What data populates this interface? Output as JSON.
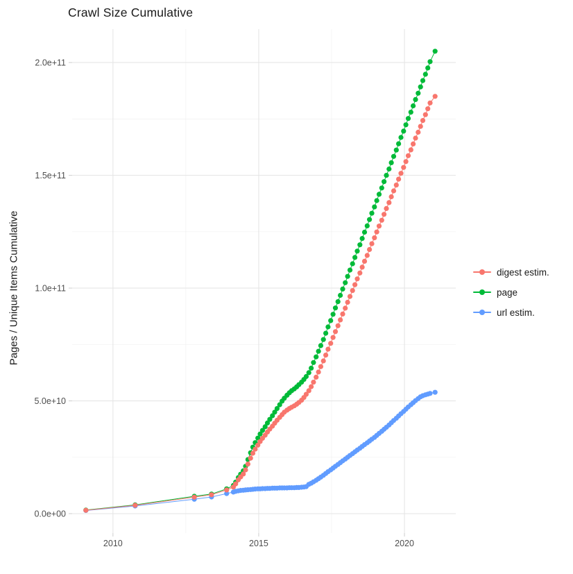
{
  "colors": {
    "background": "#FFFFFF",
    "grid_major": "#E6E6E6",
    "grid_minor": "#F0F0F0",
    "tick_mark": "#D2D2D2",
    "tick_label": "#4D4D4D",
    "text": "#1A1A1A",
    "series_red": "#F8766D",
    "series_green": "#00BA38",
    "series_blue": "#619CFF"
  },
  "chart_data": {
    "type": "line",
    "points_shown": true,
    "title": "Crawl Size Cumulative",
    "xlabel": "",
    "ylabel": "Pages / Unique Items Cumulative",
    "legend_position": "right",
    "grid": true,
    "xlim": [
      2008.6,
      2021.76
    ],
    "ylim_e9": [
      -8.6,
      214.8
    ],
    "y_unit": "pages (1 = 1e9)",
    "x_ticks": {
      "values": [
        2010,
        2015,
        2020
      ],
      "labels": [
        "2010",
        "2015",
        "2020"
      ],
      "minor": [
        2012.5,
        2017.5
      ]
    },
    "y_ticks": {
      "values_e9": [
        0,
        50,
        100,
        150,
        200
      ],
      "labels": [
        "0.0e+00",
        "5.0e+10",
        "1.0e+11",
        "1.5e+11",
        "2.0e+11"
      ],
      "minor_e9": [
        25,
        75,
        125,
        175
      ]
    },
    "series": [
      {
        "name": "digest estim.",
        "color": "#F8766D",
        "x": [
          2009.07,
          2010.76,
          2012.79,
          2013.38,
          2013.9,
          2014.13,
          2014.21,
          2014.3,
          2014.38,
          2014.47,
          2014.55,
          2014.63,
          2014.72,
          2014.8,
          2014.88,
          2014.97,
          2015.05,
          2015.13,
          2015.22,
          2015.3,
          2015.38,
          2015.47,
          2015.55,
          2015.63,
          2015.72,
          2015.8,
          2015.88,
          2015.97,
          2016.05,
          2016.13,
          2016.22,
          2016.3,
          2016.38,
          2016.47,
          2016.55,
          2016.63,
          2016.72,
          2016.8,
          2016.88,
          2016.97,
          2017.05,
          2017.13,
          2017.22,
          2017.3,
          2017.38,
          2017.47,
          2017.55,
          2017.63,
          2017.72,
          2017.8,
          2017.88,
          2017.97,
          2018.05,
          2018.13,
          2018.22,
          2018.3,
          2018.38,
          2018.47,
          2018.55,
          2018.63,
          2018.72,
          2018.8,
          2018.88,
          2018.97,
          2019.05,
          2019.13,
          2019.22,
          2019.3,
          2019.38,
          2019.47,
          2019.55,
          2019.63,
          2019.72,
          2019.8,
          2019.88,
          2019.97,
          2020.05,
          2020.13,
          2020.22,
          2020.3,
          2020.38,
          2020.47,
          2020.55,
          2020.63,
          2020.72,
          2020.8,
          2020.88,
          2021.05
        ],
        "y_e9": [
          1.5,
          3.7,
          7.3,
          8.4,
          10.5,
          11.8,
          13.2,
          15.0,
          16.3,
          17.6,
          19.4,
          22.0,
          24.6,
          26.8,
          28.6,
          30.4,
          32.0,
          33.4,
          34.8,
          36.2,
          37.5,
          38.8,
          40.1,
          41.4,
          42.7,
          43.9,
          45.0,
          45.9,
          46.6,
          47.2,
          47.8,
          48.5,
          49.3,
          50.3,
          51.5,
          52.9,
          54.5,
          56.3,
          58.3,
          60.5,
          62.8,
          65.2,
          67.7,
          70.3,
          72.9,
          75.5,
          78.1,
          80.7,
          83.3,
          85.9,
          88.5,
          91.1,
          93.7,
          96.3,
          98.9,
          101.5,
          104.1,
          106.7,
          109.3,
          111.9,
          114.5,
          117.1,
          119.7,
          122.3,
          124.9,
          127.5,
          130.1,
          132.7,
          135.3,
          137.9,
          140.5,
          143.1,
          145.7,
          148.3,
          150.9,
          153.5,
          156.1,
          158.7,
          161.3,
          163.9,
          166.5,
          169.1,
          171.7,
          174.3,
          176.9,
          179.5,
          182.1,
          185.0
        ]
      },
      {
        "name": "page",
        "color": "#00BA38",
        "x": [
          2009.07,
          2010.76,
          2012.79,
          2013.38,
          2013.9,
          2014.13,
          2014.21,
          2014.3,
          2014.38,
          2014.47,
          2014.55,
          2014.63,
          2014.72,
          2014.8,
          2014.88,
          2014.97,
          2015.05,
          2015.13,
          2015.22,
          2015.3,
          2015.38,
          2015.47,
          2015.55,
          2015.63,
          2015.72,
          2015.8,
          2015.88,
          2015.97,
          2016.05,
          2016.13,
          2016.22,
          2016.3,
          2016.38,
          2016.47,
          2016.55,
          2016.63,
          2016.72,
          2016.8,
          2016.88,
          2016.97,
          2017.05,
          2017.13,
          2017.22,
          2017.3,
          2017.38,
          2017.47,
          2017.55,
          2017.63,
          2017.72,
          2017.8,
          2017.88,
          2017.97,
          2018.05,
          2018.13,
          2018.22,
          2018.3,
          2018.38,
          2018.47,
          2018.55,
          2018.63,
          2018.72,
          2018.8,
          2018.88,
          2018.97,
          2019.05,
          2019.13,
          2019.22,
          2019.3,
          2019.38,
          2019.47,
          2019.55,
          2019.63,
          2019.72,
          2019.8,
          2019.88,
          2019.97,
          2020.05,
          2020.13,
          2020.22,
          2020.3,
          2020.38,
          2020.47,
          2020.55,
          2020.63,
          2020.72,
          2020.8,
          2020.88,
          2021.05
        ],
        "y_e9": [
          1.6,
          3.9,
          7.7,
          8.7,
          11.0,
          12.5,
          14.0,
          16.0,
          17.5,
          19.0,
          21.0,
          24.0,
          27.0,
          29.5,
          31.5,
          33.5,
          35.3,
          36.9,
          38.5,
          40.2,
          41.8,
          43.4,
          45.0,
          46.6,
          48.3,
          49.9,
          51.2,
          52.5,
          53.6,
          54.5,
          55.3,
          56.2,
          57.2,
          58.3,
          59.5,
          60.8,
          62.5,
          64.5,
          67.0,
          69.5,
          72.0,
          74.5,
          77.2,
          80.0,
          82.8,
          85.6,
          88.4,
          91.2,
          94.0,
          96.8,
          99.6,
          102.4,
          105.2,
          108.0,
          110.8,
          113.6,
          116.4,
          119.2,
          122.0,
          124.8,
          127.6,
          130.4,
          133.2,
          136.0,
          138.8,
          141.6,
          144.4,
          147.2,
          150.0,
          152.8,
          155.6,
          158.4,
          161.2,
          164.0,
          166.8,
          169.6,
          172.4,
          175.2,
          178.0,
          180.8,
          183.6,
          186.4,
          189.2,
          192.0,
          194.8,
          197.6,
          200.4,
          205.0
        ]
      },
      {
        "name": "url estim.",
        "color": "#619CFF",
        "x": [
          2009.07,
          2010.76,
          2012.79,
          2013.38,
          2013.9,
          2014.13,
          2014.21,
          2014.3,
          2014.38,
          2014.47,
          2014.55,
          2014.63,
          2014.72,
          2014.8,
          2014.88,
          2014.97,
          2015.05,
          2015.13,
          2015.22,
          2015.3,
          2015.38,
          2015.47,
          2015.55,
          2015.63,
          2015.72,
          2015.8,
          2015.88,
          2015.97,
          2016.05,
          2016.13,
          2016.22,
          2016.3,
          2016.38,
          2016.47,
          2016.55,
          2016.63,
          2016.72,
          2016.8,
          2016.88,
          2016.97,
          2017.05,
          2017.13,
          2017.22,
          2017.3,
          2017.38,
          2017.47,
          2017.55,
          2017.63,
          2017.72,
          2017.8,
          2017.88,
          2017.97,
          2018.05,
          2018.13,
          2018.22,
          2018.3,
          2018.38,
          2018.47,
          2018.55,
          2018.63,
          2018.72,
          2018.8,
          2018.88,
          2018.97,
          2019.05,
          2019.13,
          2019.22,
          2019.3,
          2019.38,
          2019.47,
          2019.55,
          2019.63,
          2019.72,
          2019.8,
          2019.88,
          2019.97,
          2020.05,
          2020.13,
          2020.22,
          2020.3,
          2020.38,
          2020.47,
          2020.55,
          2020.63,
          2020.72,
          2020.8,
          2020.88,
          2021.05
        ],
        "y_e9": [
          1.4,
          3.4,
          6.4,
          7.4,
          8.9,
          9.6,
          9.9,
          10.1,
          10.3,
          10.4,
          10.5,
          10.6,
          10.7,
          10.8,
          10.9,
          11.0,
          11.0,
          11.1,
          11.1,
          11.2,
          11.2,
          11.3,
          11.3,
          11.3,
          11.4,
          11.4,
          11.4,
          11.4,
          11.5,
          11.5,
          11.5,
          11.6,
          11.6,
          11.7,
          11.8,
          12.0,
          13.0,
          13.5,
          14.1,
          14.8,
          15.5,
          16.2,
          17.0,
          17.8,
          18.6,
          19.4,
          20.2,
          21.0,
          21.8,
          22.6,
          23.4,
          24.2,
          25.0,
          25.8,
          26.6,
          27.4,
          28.2,
          29.0,
          29.8,
          30.6,
          31.4,
          32.2,
          33.0,
          33.8,
          34.7,
          35.6,
          36.5,
          37.4,
          38.3,
          39.3,
          40.3,
          41.3,
          42.3,
          43.3,
          44.3,
          45.3,
          46.3,
          47.3,
          48.3,
          49.2,
          50.1,
          51.0,
          51.8,
          52.3,
          52.7,
          53.0,
          53.3,
          53.8
        ]
      }
    ]
  }
}
